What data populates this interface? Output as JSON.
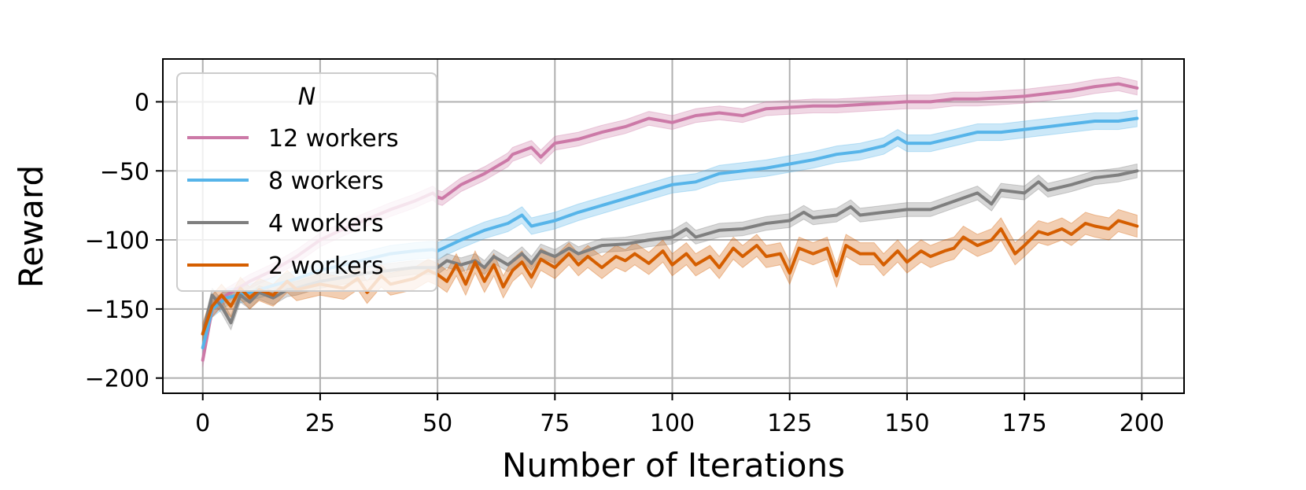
{
  "chart_data": {
    "type": "line",
    "xlabel": "Number of Iterations",
    "ylabel": "Reward",
    "xlim": [
      -8.5,
      209
    ],
    "ylim": [
      -211,
      31
    ],
    "xticks": [
      0,
      25,
      50,
      75,
      100,
      125,
      150,
      175,
      200
    ],
    "xtick_labels": [
      "0",
      "25",
      "50",
      "75",
      "100",
      "125",
      "150",
      "175",
      "200"
    ],
    "yticks": [
      0,
      -50,
      -100,
      -150,
      -200
    ],
    "ytick_labels": [
      "0",
      "−50",
      "−100",
      "−150",
      "−200"
    ],
    "grid": true,
    "legend": {
      "title": "N",
      "placement": "upper-left"
    },
    "series": [
      {
        "name": "12 workers",
        "color": "#cc79a7",
        "band": 5,
        "points": [
          [
            0,
            -187
          ],
          [
            2,
            -150
          ],
          [
            5,
            -140
          ],
          [
            10,
            -130
          ],
          [
            15,
            -122
          ],
          [
            20,
            -112
          ],
          [
            25,
            -100
          ],
          [
            30,
            -92
          ],
          [
            35,
            -85
          ],
          [
            40,
            -78
          ],
          [
            45,
            -72
          ],
          [
            49,
            -66
          ],
          [
            50,
            -69
          ],
          [
            51,
            -70
          ],
          [
            55,
            -60
          ],
          [
            60,
            -52
          ],
          [
            62,
            -48
          ],
          [
            65,
            -42
          ],
          [
            66,
            -38
          ],
          [
            70,
            -33
          ],
          [
            72,
            -40
          ],
          [
            75,
            -30
          ],
          [
            80,
            -27
          ],
          [
            85,
            -22
          ],
          [
            90,
            -18
          ],
          [
            95,
            -12
          ],
          [
            100,
            -15
          ],
          [
            105,
            -10
          ],
          [
            110,
            -8
          ],
          [
            115,
            -10
          ],
          [
            120,
            -5
          ],
          [
            125,
            -4
          ],
          [
            130,
            -3
          ],
          [
            135,
            -3
          ],
          [
            140,
            -2
          ],
          [
            145,
            -1
          ],
          [
            150,
            0
          ],
          [
            155,
            0
          ],
          [
            160,
            2
          ],
          [
            165,
            2
          ],
          [
            170,
            3
          ],
          [
            175,
            4
          ],
          [
            180,
            6
          ],
          [
            185,
            8
          ],
          [
            190,
            11
          ],
          [
            195,
            13
          ],
          [
            199,
            10
          ]
        ]
      },
      {
        "name": "8 workers",
        "color": "#56b4e9",
        "band": 6,
        "points": [
          [
            0,
            -178
          ],
          [
            2,
            -150
          ],
          [
            5,
            -142
          ],
          [
            10,
            -138
          ],
          [
            15,
            -133
          ],
          [
            20,
            -128
          ],
          [
            25,
            -122
          ],
          [
            30,
            -118
          ],
          [
            35,
            -114
          ],
          [
            40,
            -110
          ],
          [
            45,
            -108
          ],
          [
            49,
            -107
          ],
          [
            50,
            -108
          ],
          [
            55,
            -100
          ],
          [
            60,
            -93
          ],
          [
            65,
            -88
          ],
          [
            68,
            -82
          ],
          [
            70,
            -90
          ],
          [
            75,
            -86
          ],
          [
            80,
            -80
          ],
          [
            85,
            -75
          ],
          [
            90,
            -70
          ],
          [
            95,
            -65
          ],
          [
            100,
            -60
          ],
          [
            105,
            -58
          ],
          [
            110,
            -52
          ],
          [
            115,
            -50
          ],
          [
            120,
            -48
          ],
          [
            125,
            -45
          ],
          [
            130,
            -42
          ],
          [
            135,
            -38
          ],
          [
            140,
            -36
          ],
          [
            145,
            -32
          ],
          [
            148,
            -26
          ],
          [
            150,
            -30
          ],
          [
            155,
            -30
          ],
          [
            160,
            -26
          ],
          [
            165,
            -22
          ],
          [
            170,
            -22
          ],
          [
            175,
            -20
          ],
          [
            180,
            -18
          ],
          [
            185,
            -16
          ],
          [
            190,
            -14
          ],
          [
            195,
            -14
          ],
          [
            199,
            -12
          ]
        ]
      },
      {
        "name": "4 workers",
        "color": "#7f7f7f",
        "band": 5,
        "points": [
          [
            0,
            -168
          ],
          [
            2,
            -140
          ],
          [
            4,
            -148
          ],
          [
            6,
            -160
          ],
          [
            8,
            -140
          ],
          [
            10,
            -145
          ],
          [
            12,
            -138
          ],
          [
            15,
            -142
          ],
          [
            18,
            -136
          ],
          [
            20,
            -135
          ],
          [
            25,
            -130
          ],
          [
            30,
            -127
          ],
          [
            35,
            -124
          ],
          [
            40,
            -122
          ],
          [
            45,
            -120
          ],
          [
            50,
            -120
          ],
          [
            52,
            -115
          ],
          [
            55,
            -118
          ],
          [
            58,
            -115
          ],
          [
            60,
            -120
          ],
          [
            62,
            -112
          ],
          [
            65,
            -118
          ],
          [
            68,
            -110
          ],
          [
            70,
            -117
          ],
          [
            72,
            -108
          ],
          [
            75,
            -112
          ],
          [
            78,
            -106
          ],
          [
            80,
            -110
          ],
          [
            85,
            -104
          ],
          [
            90,
            -103
          ],
          [
            95,
            -100
          ],
          [
            100,
            -98
          ],
          [
            103,
            -92
          ],
          [
            105,
            -98
          ],
          [
            110,
            -93
          ],
          [
            115,
            -92
          ],
          [
            120,
            -88
          ],
          [
            125,
            -86
          ],
          [
            128,
            -80
          ],
          [
            130,
            -84
          ],
          [
            135,
            -82
          ],
          [
            138,
            -76
          ],
          [
            140,
            -82
          ],
          [
            145,
            -80
          ],
          [
            150,
            -78
          ],
          [
            155,
            -78
          ],
          [
            160,
            -72
          ],
          [
            165,
            -66
          ],
          [
            168,
            -74
          ],
          [
            170,
            -64
          ],
          [
            175,
            -66
          ],
          [
            178,
            -58
          ],
          [
            180,
            -64
          ],
          [
            185,
            -60
          ],
          [
            190,
            -55
          ],
          [
            195,
            -53
          ],
          [
            199,
            -50
          ]
        ]
      },
      {
        "name": "2 workers",
        "color": "#d55e00",
        "band": 8,
        "points": [
          [
            0,
            -168
          ],
          [
            2,
            -148
          ],
          [
            4,
            -140
          ],
          [
            6,
            -148
          ],
          [
            8,
            -135
          ],
          [
            10,
            -142
          ],
          [
            12,
            -136
          ],
          [
            15,
            -140
          ],
          [
            18,
            -130
          ],
          [
            20,
            -136
          ],
          [
            25,
            -132
          ],
          [
            30,
            -135
          ],
          [
            33,
            -128
          ],
          [
            35,
            -138
          ],
          [
            38,
            -126
          ],
          [
            40,
            -132
          ],
          [
            45,
            -128
          ],
          [
            48,
            -122
          ],
          [
            50,
            -125
          ],
          [
            52,
            -130
          ],
          [
            54,
            -118
          ],
          [
            56,
            -132
          ],
          [
            58,
            -116
          ],
          [
            60,
            -130
          ],
          [
            62,
            -118
          ],
          [
            64,
            -134
          ],
          [
            66,
            -122
          ],
          [
            68,
            -116
          ],
          [
            70,
            -127
          ],
          [
            72,
            -114
          ],
          [
            75,
            -120
          ],
          [
            78,
            -110
          ],
          [
            80,
            -118
          ],
          [
            82,
            -112
          ],
          [
            85,
            -120
          ],
          [
            88,
            -112
          ],
          [
            90,
            -115
          ],
          [
            92,
            -110
          ],
          [
            95,
            -117
          ],
          [
            98,
            -108
          ],
          [
            100,
            -118
          ],
          [
            103,
            -110
          ],
          [
            105,
            -118
          ],
          [
            108,
            -112
          ],
          [
            110,
            -120
          ],
          [
            113,
            -106
          ],
          [
            115,
            -112
          ],
          [
            118,
            -104
          ],
          [
            120,
            -112
          ],
          [
            123,
            -110
          ],
          [
            125,
            -124
          ],
          [
            127,
            -106
          ],
          [
            130,
            -110
          ],
          [
            133,
            -106
          ],
          [
            135,
            -126
          ],
          [
            137,
            -104
          ],
          [
            140,
            -110
          ],
          [
            143,
            -110
          ],
          [
            145,
            -118
          ],
          [
            148,
            -108
          ],
          [
            150,
            -116
          ],
          [
            153,
            -108
          ],
          [
            155,
            -112
          ],
          [
            158,
            -108
          ],
          [
            160,
            -106
          ],
          [
            162,
            -98
          ],
          [
            165,
            -104
          ],
          [
            168,
            -100
          ],
          [
            170,
            -92
          ],
          [
            173,
            -110
          ],
          [
            175,
            -104
          ],
          [
            178,
            -94
          ],
          [
            180,
            -96
          ],
          [
            183,
            -92
          ],
          [
            185,
            -96
          ],
          [
            188,
            -88
          ],
          [
            190,
            -90
          ],
          [
            193,
            -92
          ],
          [
            195,
            -86
          ],
          [
            199,
            -90
          ]
        ]
      }
    ]
  }
}
